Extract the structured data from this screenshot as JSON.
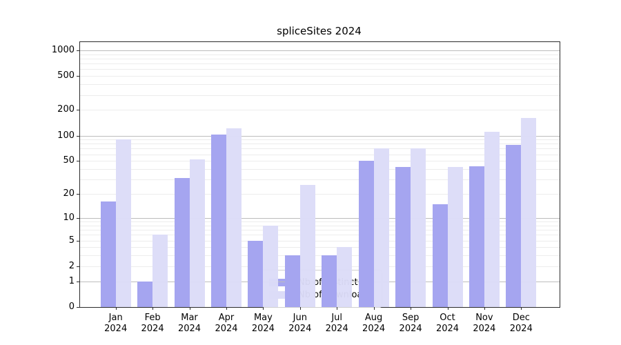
{
  "chart_data": {
    "type": "bar",
    "title": "spliceSites 2024",
    "categories": [
      "Jan 2024",
      "Feb 2024",
      "Mar 2024",
      "Apr 2024",
      "May 2024",
      "Jun 2024",
      "Jul 2024",
      "Aug 2024",
      "Sep 2024",
      "Oct 2024",
      "Nov 2024",
      "Dec 2024"
    ],
    "series": [
      {
        "name": "Nb of distinct IPs",
        "color": "#a5a5f0",
        "values": [
          16,
          1,
          31,
          103,
          5,
          3,
          3,
          50,
          42,
          15,
          43,
          77
        ]
      },
      {
        "name": "Nb of downloads",
        "color": "#dcdcf8",
        "values": [
          90,
          6,
          52,
          122,
          8,
          26,
          4,
          70,
          70,
          42,
          110,
          160
        ]
      }
    ],
    "y_axis": {
      "scale": "log10(value+1)",
      "ticks": [
        0,
        1,
        2,
        5,
        10,
        20,
        50,
        100,
        200,
        500,
        1000
      ],
      "ylim": [
        0,
        1250
      ],
      "grid": true
    },
    "legend": {
      "position": "lower-center",
      "labels": [
        "Nb of distinct IPs",
        "Nb of downloads"
      ]
    }
  }
}
